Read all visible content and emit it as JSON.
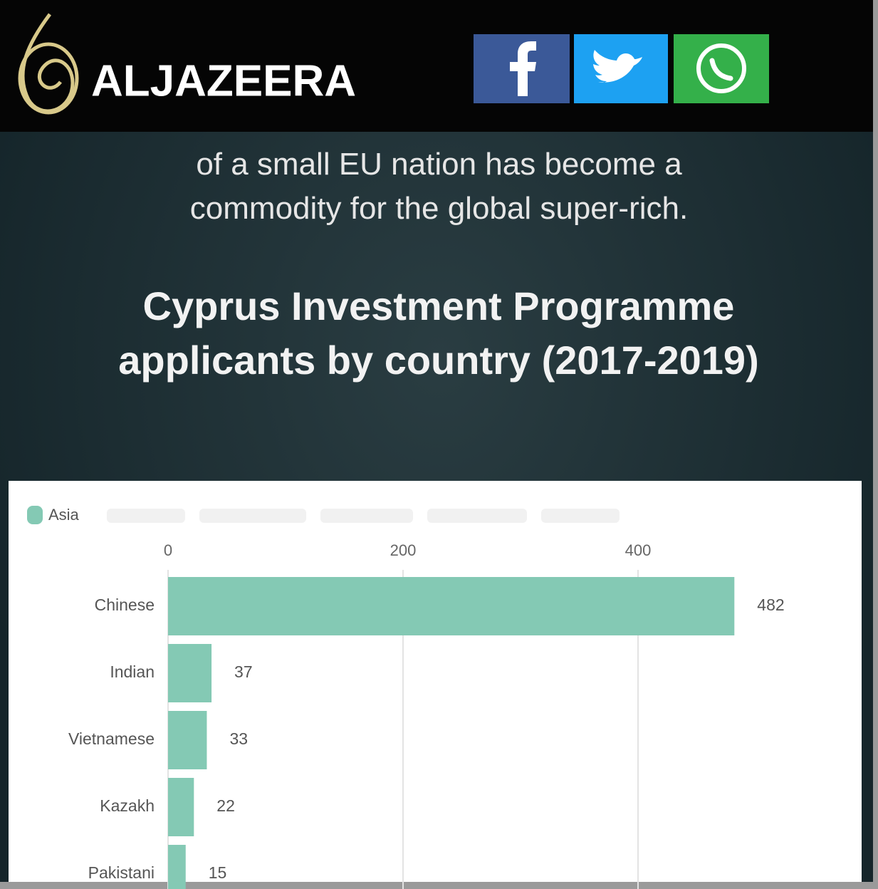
{
  "header": {
    "logo": "ALJAZEERA"
  },
  "intro": [
    "of a small EU nation has become a",
    "commodity for the global super-rich."
  ],
  "chart_data": {
    "type": "bar",
    "orientation": "horizontal",
    "title": "Cyprus Investment Programme applicants by country (2017-2019)",
    "categories": [
      "Chinese",
      "Indian",
      "Vietnamese",
      "Kazakh",
      "Pakistani"
    ],
    "series": [
      {
        "name": "Asia",
        "color": "#84c9b4",
        "values": [
          482,
          37,
          33,
          22,
          15
        ]
      }
    ],
    "xlim": [
      0,
      580
    ],
    "xticks": [
      0,
      200,
      400
    ],
    "grid": true,
    "legend": "top-left"
  }
}
